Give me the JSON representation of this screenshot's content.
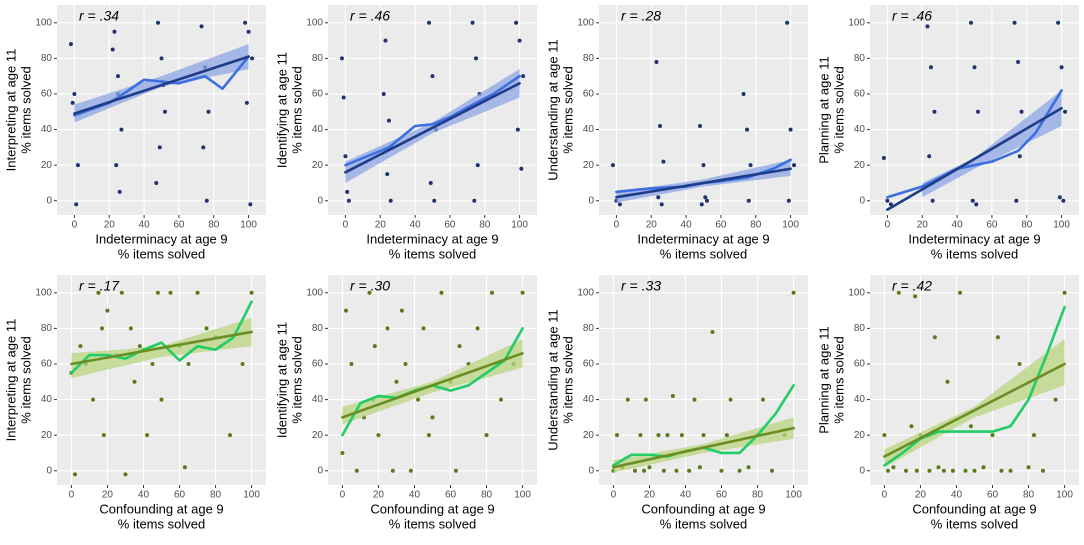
{
  "chart_data": [
    {
      "type": "scatter",
      "annotation": "r = .34",
      "x_label": [
        "Indeterminacy at age 9",
        "% items solved"
      ],
      "y_label": [
        "Interpreting at age 11",
        "% items solved"
      ],
      "xlim": [
        -10,
        110
      ],
      "xticks": [
        0,
        20,
        40,
        60,
        80,
        100
      ],
      "ylim": [
        -8,
        110
      ],
      "yticks": [
        0,
        20,
        40,
        60,
        80,
        100
      ],
      "grid": true,
      "points": {
        "color": "#1f3370",
        "x": [
          -2,
          0,
          2,
          1,
          -1,
          23,
          25,
          27,
          24,
          26,
          25,
          22,
          48,
          50,
          52,
          49,
          51,
          47,
          73,
          75,
          77,
          76,
          74,
          98,
          100,
          102,
          99,
          101
        ],
        "y": [
          88,
          60,
          20,
          -2,
          55,
          95,
          70,
          40,
          20,
          5,
          60,
          85,
          100,
          80,
          50,
          30,
          65,
          10,
          98,
          75,
          50,
          0,
          30,
          100,
          95,
          80,
          55,
          -2
        ]
      },
      "band": {
        "color": "#8ea6e6",
        "x": [
          0,
          50,
          100
        ],
        "lower": [
          44,
          64,
          74
        ],
        "upper": [
          54,
          70,
          88
        ]
      },
      "fit_line": {
        "color": "#1f3c88",
        "x": [
          0,
          100
        ],
        "y": [
          49,
          81
        ]
      },
      "smooth": {
        "color": "#3d6fe0",
        "x": [
          0,
          20,
          25,
          40,
          50,
          60,
          75,
          85,
          100
        ],
        "y": [
          48,
          55,
          58,
          68,
          67,
          66,
          70,
          63,
          81
        ]
      }
    },
    {
      "type": "scatter",
      "annotation": "r = .46",
      "x_label": [
        "Indeterminacy at age 9",
        "% items solved"
      ],
      "y_label": [
        "Identifying at age 11",
        "% items solved"
      ],
      "xlim": [
        -10,
        110
      ],
      "xticks": [
        0,
        20,
        40,
        60,
        80,
        100
      ],
      "ylim": [
        -8,
        110
      ],
      "yticks": [
        0,
        20,
        40,
        60,
        80,
        100
      ],
      "grid": true,
      "points": {
        "color": "#1f3370",
        "x": [
          -2,
          0,
          1,
          2,
          -1,
          23,
          25,
          27,
          24,
          26,
          22,
          48,
          50,
          52,
          49,
          51,
          73,
          75,
          77,
          76,
          74,
          98,
          100,
          102,
          99,
          101
        ],
        "y": [
          80,
          25,
          5,
          0,
          58,
          90,
          45,
          30,
          15,
          0,
          60,
          100,
          70,
          40,
          10,
          0,
          100,
          80,
          60,
          20,
          0,
          100,
          90,
          70,
          40,
          18
        ]
      },
      "band": {
        "color": "#8ea6e6",
        "x": [
          0,
          50,
          100
        ],
        "lower": [
          10,
          38,
          58
        ],
        "upper": [
          22,
          44,
          74
        ]
      },
      "fit_line": {
        "color": "#1f3c88",
        "x": [
          0,
          100
        ],
        "y": [
          16,
          66
        ]
      },
      "smooth": {
        "color": "#3d6fe0",
        "x": [
          0,
          20,
          25,
          40,
          50,
          60,
          75,
          85,
          100
        ],
        "y": [
          20,
          28,
          30,
          42,
          43,
          47,
          55,
          60,
          70
        ]
      }
    },
    {
      "type": "scatter",
      "annotation": "r = .28",
      "x_label": [
        "Indeterminacy at age 9",
        "% items solved"
      ],
      "y_label": [
        "Understanding at age 11",
        "% items solved"
      ],
      "xlim": [
        -10,
        110
      ],
      "xticks": [
        0,
        20,
        40,
        60,
        80,
        100
      ],
      "ylim": [
        -8,
        110
      ],
      "yticks": [
        0,
        20,
        40,
        60,
        80,
        100
      ],
      "grid": true,
      "points": {
        "color": "#1f3370",
        "x": [
          -2,
          0,
          2,
          23,
          25,
          27,
          24,
          26,
          48,
          50,
          52,
          49,
          51,
          73,
          75,
          77,
          76,
          98,
          100,
          102,
          99
        ],
        "y": [
          20,
          0,
          -2,
          78,
          42,
          22,
          2,
          -2,
          42,
          20,
          0,
          -2,
          2,
          60,
          40,
          20,
          0,
          100,
          40,
          20,
          0
        ]
      },
      "band": {
        "color": "#8ea6e6",
        "x": [
          0,
          50,
          100
        ],
        "lower": [
          -1,
          8,
          14
        ],
        "upper": [
          5,
          12,
          23
        ]
      },
      "fit_line": {
        "color": "#1f3c88",
        "x": [
          0,
          100
        ],
        "y": [
          2,
          18
        ]
      },
      "smooth": {
        "color": "#3d6fe0",
        "x": [
          0,
          20,
          40,
          50,
          60,
          75,
          90,
          100
        ],
        "y": [
          5,
          7,
          8,
          10,
          11,
          13,
          18,
          23
        ]
      }
    },
    {
      "type": "scatter",
      "annotation": "r = .46",
      "x_label": [
        "Indeterminacy at age 9",
        "% items solved"
      ],
      "y_label": [
        "Planning at age 11",
        "% items solved"
      ],
      "xlim": [
        -10,
        110
      ],
      "xticks": [
        0,
        20,
        40,
        60,
        80,
        100
      ],
      "ylim": [
        -8,
        110
      ],
      "yticks": [
        0,
        20,
        40,
        60,
        80,
        100
      ],
      "grid": true,
      "points": {
        "color": "#1f3370",
        "x": [
          -2,
          0,
          2,
          23,
          25,
          27,
          24,
          26,
          48,
          50,
          52,
          49,
          51,
          73,
          75,
          77,
          76,
          74,
          98,
          100,
          102,
          99,
          101
        ],
        "y": [
          24,
          0,
          -2,
          98,
          75,
          50,
          25,
          0,
          100,
          75,
          50,
          0,
          -2,
          100,
          78,
          50,
          25,
          0,
          100,
          75,
          50,
          2,
          0
        ]
      },
      "band": {
        "color": "#8ea6e6",
        "x": [
          20,
          50,
          100
        ],
        "lower": [
          2,
          18,
          42
        ],
        "upper": [
          10,
          24,
          62
        ]
      },
      "fit_line": {
        "color": "#1f3c88",
        "x": [
          0,
          100
        ],
        "y": [
          -5,
          52
        ]
      },
      "smooth": {
        "color": "#3d6fe0",
        "x": [
          0,
          20,
          40,
          50,
          60,
          75,
          85,
          100
        ],
        "y": [
          2,
          8,
          18,
          20,
          22,
          28,
          38,
          62
        ]
      }
    },
    {
      "type": "scatter",
      "annotation": "r = .17",
      "x_label": [
        "Confounding at age 9",
        "% items solved"
      ],
      "y_label": [
        "Interpreting at age 11",
        "% items solved"
      ],
      "xlim": [
        -8,
        108
      ],
      "xticks": [
        0,
        20,
        40,
        60,
        80,
        100
      ],
      "ylim": [
        -8,
        110
      ],
      "yticks": [
        0,
        20,
        40,
        60,
        80,
        100
      ],
      "grid": true,
      "points": {
        "color": "#5a7a1a",
        "x": [
          0,
          2,
          5,
          8,
          12,
          15,
          17,
          18,
          20,
          25,
          28,
          30,
          33,
          35,
          38,
          42,
          45,
          48,
          50,
          55,
          60,
          63,
          65,
          70,
          75,
          80,
          83,
          88,
          95,
          100
        ],
        "y": [
          55,
          -2,
          70,
          60,
          40,
          100,
          80,
          20,
          90,
          65,
          100,
          -2,
          80,
          50,
          70,
          20,
          60,
          100,
          40,
          100,
          70,
          2,
          60,
          100,
          80,
          75,
          70,
          20,
          60,
          100
        ]
      },
      "band": {
        "color": "#b9d47e",
        "x": [
          0,
          50,
          100
        ],
        "lower": [
          52,
          64,
          70
        ],
        "upper": [
          66,
          70,
          86
        ]
      },
      "fit_line": {
        "color": "#6b8e23",
        "x": [
          0,
          100
        ],
        "y": [
          60,
          78
        ]
      },
      "smooth": {
        "color": "#22cc66",
        "x": [
          0,
          10,
          20,
          30,
          40,
          50,
          60,
          70,
          80,
          90,
          100
        ],
        "y": [
          55,
          65,
          65,
          63,
          68,
          72,
          62,
          70,
          68,
          75,
          95
        ]
      }
    },
    {
      "type": "scatter",
      "annotation": "r = .30",
      "x_label": [
        "Confounding at age 9",
        "% items solved"
      ],
      "y_label": [
        "Identifying at age 11",
        "% items solved"
      ],
      "xlim": [
        -8,
        108
      ],
      "xticks": [
        0,
        20,
        40,
        60,
        80,
        100
      ],
      "ylim": [
        -8,
        110
      ],
      "yticks": [
        0,
        20,
        40,
        60,
        80,
        100
      ],
      "grid": true,
      "points": {
        "color": "#5a7a1a",
        "x": [
          0,
          2,
          5,
          8,
          12,
          15,
          17,
          18,
          20,
          25,
          28,
          30,
          33,
          35,
          38,
          42,
          45,
          48,
          50,
          55,
          60,
          63,
          65,
          70,
          75,
          80,
          83,
          88,
          95,
          100
        ],
        "y": [
          10,
          90,
          60,
          0,
          30,
          100,
          40,
          70,
          20,
          80,
          0,
          50,
          90,
          60,
          0,
          40,
          80,
          20,
          30,
          100,
          50,
          0,
          70,
          60,
          80,
          20,
          100,
          40,
          60,
          100
        ]
      },
      "band": {
        "color": "#b9d47e",
        "x": [
          0,
          50,
          100
        ],
        "lower": [
          26,
          44,
          58
        ],
        "upper": [
          36,
          50,
          74
        ]
      },
      "fit_line": {
        "color": "#6b8e23",
        "x": [
          0,
          100
        ],
        "y": [
          30,
          66
        ]
      },
      "smooth": {
        "color": "#22cc66",
        "x": [
          0,
          10,
          20,
          30,
          40,
          50,
          60,
          70,
          80,
          90,
          100
        ],
        "y": [
          20,
          38,
          42,
          41,
          45,
          48,
          45,
          48,
          55,
          62,
          80
        ]
      }
    },
    {
      "type": "scatter",
      "annotation": "r = .33",
      "x_label": [
        "Confounding at age 9",
        "% items solved"
      ],
      "y_label": [
        "Understanding at age 11",
        "% items solved"
      ],
      "xlim": [
        -8,
        108
      ],
      "xticks": [
        0,
        20,
        40,
        60,
        80,
        100
      ],
      "ylim": [
        -8,
        110
      ],
      "yticks": [
        0,
        20,
        40,
        60,
        80,
        100
      ],
      "grid": true,
      "points": {
        "color": "#5a7a1a",
        "x": [
          0,
          2,
          5,
          8,
          12,
          15,
          17,
          18,
          20,
          25,
          28,
          30,
          33,
          35,
          38,
          42,
          45,
          48,
          50,
          55,
          60,
          63,
          65,
          70,
          75,
          80,
          83,
          88,
          95,
          100
        ],
        "y": [
          0,
          20,
          2,
          40,
          0,
          20,
          0,
          40,
          2,
          20,
          0,
          20,
          42,
          0,
          20,
          0,
          40,
          2,
          20,
          78,
          0,
          20,
          40,
          0,
          2,
          20,
          40,
          0,
          20,
          100
        ]
      },
      "band": {
        "color": "#b9d47e",
        "x": [
          0,
          50,
          100
        ],
        "lower": [
          -1,
          10,
          18
        ],
        "upper": [
          6,
          15,
          30
        ]
      },
      "fit_line": {
        "color": "#6b8e23",
        "x": [
          0,
          100
        ],
        "y": [
          2,
          24
        ]
      },
      "smooth": {
        "color": "#22cc66",
        "x": [
          0,
          10,
          20,
          30,
          40,
          50,
          60,
          70,
          80,
          90,
          100
        ],
        "y": [
          3,
          9,
          9,
          8,
          11,
          13,
          10,
          10,
          20,
          32,
          48
        ]
      }
    },
    {
      "type": "scatter",
      "annotation": "r = .42",
      "x_label": [
        "Confounding at age 9",
        "% items solved"
      ],
      "y_label": [
        "Planning at age 11",
        "% items solved"
      ],
      "xlim": [
        -8,
        108
      ],
      "xticks": [
        0,
        20,
        40,
        60,
        80,
        100
      ],
      "ylim": [
        -8,
        110
      ],
      "yticks": [
        0,
        20,
        40,
        60,
        80,
        100
      ],
      "grid": true,
      "points": {
        "color": "#5a7a1a",
        "x": [
          0,
          2,
          5,
          8,
          12,
          15,
          17,
          18,
          20,
          25,
          28,
          30,
          33,
          35,
          38,
          42,
          45,
          48,
          50,
          55,
          60,
          63,
          65,
          70,
          75,
          80,
          83,
          88,
          95,
          100
        ],
        "y": [
          20,
          0,
          2,
          100,
          0,
          25,
          98,
          0,
          20,
          0,
          75,
          2,
          0,
          50,
          0,
          100,
          0,
          25,
          0,
          2,
          20,
          75,
          0,
          0,
          60,
          2,
          20,
          0,
          40,
          100
        ]
      },
      "band": {
        "color": "#b9d47e",
        "x": [
          0,
          50,
          100
        ],
        "lower": [
          2,
          30,
          48
        ],
        "upper": [
          12,
          36,
          74
        ]
      },
      "fit_line": {
        "color": "#6b8e23",
        "x": [
          0,
          100
        ],
        "y": [
          8,
          60
        ]
      },
      "smooth": {
        "color": "#22cc66",
        "x": [
          0,
          10,
          20,
          30,
          40,
          50,
          60,
          70,
          80,
          90,
          100
        ],
        "y": [
          3,
          10,
          18,
          22,
          22,
          22,
          22,
          25,
          40,
          65,
          92
        ]
      }
    }
  ]
}
